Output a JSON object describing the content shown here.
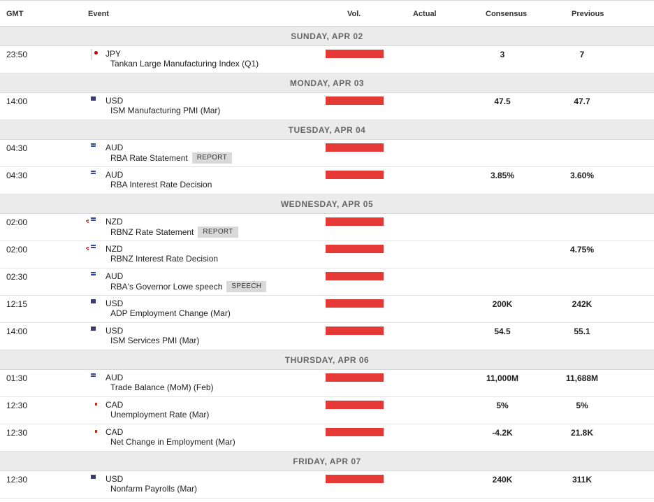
{
  "columns": {
    "gmt": "GMT",
    "event": "Event",
    "vol": "Vol.",
    "actual": "Actual",
    "consensus": "Consensus",
    "previous": "Previous"
  },
  "colors": {
    "volatility_high": "#e53935",
    "day_header_bg": "#ebebeb"
  },
  "days": [
    {
      "label": "SUNDAY, APR 02",
      "events": [
        {
          "time": "23:50",
          "flag": "jp-flag-icon",
          "currency": "JPY",
          "name": "Tankan Large Manufacturing Index (Q1)",
          "tag": "",
          "volatility": "high",
          "actual": "",
          "consensus": "3",
          "previous": "7"
        }
      ]
    },
    {
      "label": "MONDAY, APR 03",
      "events": [
        {
          "time": "14:00",
          "flag": "us-flag-icon",
          "currency": "USD",
          "name": "ISM Manufacturing PMI (Mar)",
          "tag": "",
          "volatility": "high",
          "actual": "",
          "consensus": "47.5",
          "previous": "47.7"
        }
      ]
    },
    {
      "label": "TUESDAY, APR 04",
      "events": [
        {
          "time": "04:30",
          "flag": "au-flag-icon",
          "currency": "AUD",
          "name": "RBA Rate Statement",
          "tag": "REPORT",
          "volatility": "high",
          "actual": "",
          "consensus": "",
          "previous": ""
        },
        {
          "time": "04:30",
          "flag": "au-flag-icon",
          "currency": "AUD",
          "name": "RBA Interest Rate Decision",
          "tag": "",
          "volatility": "high",
          "actual": "",
          "consensus": "3.85%",
          "previous": "3.60%"
        }
      ]
    },
    {
      "label": "WEDNESDAY, APR 05",
      "events": [
        {
          "time": "02:00",
          "flag": "nz-flag-icon",
          "currency": "NZD",
          "name": "RBNZ Rate Statement",
          "tag": "REPORT",
          "volatility": "high",
          "actual": "",
          "consensus": "",
          "previous": ""
        },
        {
          "time": "02:00",
          "flag": "nz-flag-icon",
          "currency": "NZD",
          "name": "RBNZ Interest Rate Decision",
          "tag": "",
          "volatility": "high",
          "actual": "",
          "consensus": "",
          "previous": "4.75%"
        },
        {
          "time": "02:30",
          "flag": "au-flag-icon",
          "currency": "AUD",
          "name": "RBA's Governor Lowe speech",
          "tag": "SPEECH",
          "volatility": "high",
          "actual": "",
          "consensus": "",
          "previous": ""
        },
        {
          "time": "12:15",
          "flag": "us-flag-icon",
          "currency": "USD",
          "name": "ADP Employment Change (Mar)",
          "tag": "",
          "volatility": "high",
          "actual": "",
          "consensus": "200K",
          "previous": "242K"
        },
        {
          "time": "14:00",
          "flag": "us-flag-icon",
          "currency": "USD",
          "name": "ISM Services PMI (Mar)",
          "tag": "",
          "volatility": "high",
          "actual": "",
          "consensus": "54.5",
          "previous": "55.1"
        }
      ]
    },
    {
      "label": "THURSDAY, APR 06",
      "events": [
        {
          "time": "01:30",
          "flag": "au-flag-icon",
          "currency": "AUD",
          "name": "Trade Balance (MoM) (Feb)",
          "tag": "",
          "volatility": "high",
          "actual": "",
          "consensus": "11,000M",
          "previous": "11,688M"
        },
        {
          "time": "12:30",
          "flag": "ca-flag-icon",
          "currency": "CAD",
          "name": "Unemployment Rate (Mar)",
          "tag": "",
          "volatility": "high",
          "actual": "",
          "consensus": "5%",
          "previous": "5%"
        },
        {
          "time": "12:30",
          "flag": "ca-flag-icon",
          "currency": "CAD",
          "name": "Net Change in Employment (Mar)",
          "tag": "",
          "volatility": "high",
          "actual": "",
          "consensus": "-4.2K",
          "previous": "21.8K"
        }
      ]
    },
    {
      "label": "FRIDAY, APR 07",
      "events": [
        {
          "time": "12:30",
          "flag": "us-flag-icon",
          "currency": "USD",
          "name": "Nonfarm Payrolls (Mar)",
          "tag": "",
          "volatility": "high",
          "actual": "",
          "consensus": "240K",
          "previous": "311K"
        }
      ]
    }
  ]
}
